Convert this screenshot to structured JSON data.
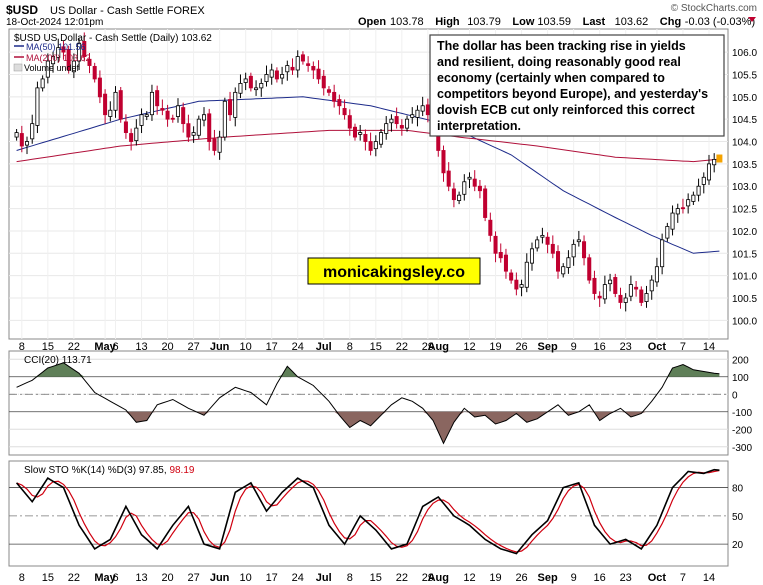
{
  "header": {
    "symbol": "$USD",
    "name": "US Dollar - Cash Settle FOREX",
    "datetime": "18-Oct-2024 12:01pm",
    "source": "© StockCharts.com",
    "ohlc": [
      {
        "label": "Open",
        "value": "103.78"
      },
      {
        "label": "High",
        "value": "103.79"
      },
      {
        "label": "Low",
        "value": "103.59"
      },
      {
        "label": "Last",
        "value": "103.62"
      },
      {
        "label": "Chg",
        "value": "-0.03 (-0.03%)"
      }
    ]
  },
  "legend": {
    "main": "$USD US Dollar - Cash Settle (Daily) 103.62",
    "ma50": "MA(50) 101.56",
    "ma200": "MA(200) 103.62",
    "volume": "Volume undef"
  },
  "annotation": "The dollar has been tracking rise in yields and resilient, doing reasonably good real economy (certainly when compared to competitors beyond Europe), and yesterday's dovish ECB cut only reinforced this correct interpretation.",
  "watermark": "monicakingsley.co",
  "colors": {
    "up": "#000000",
    "down": "#c00030",
    "ma50": "#1c2a8a",
    "ma200": "#b0103a",
    "cci_pos": "#5f7f58",
    "cci_neg": "#8a6660",
    "stoch_k": "#000000",
    "stoch_d": "#d00010",
    "watermark_bg": "#ffff00"
  },
  "x_axis": {
    "labels": [
      {
        "i": 1,
        "text": "8"
      },
      {
        "i": 6,
        "text": "15"
      },
      {
        "i": 11,
        "text": "22"
      },
      {
        "i": 17,
        "text": "May",
        "bold": true
      },
      {
        "i": 19,
        "text": "6"
      },
      {
        "i": 24,
        "text": "13"
      },
      {
        "i": 29,
        "text": "20"
      },
      {
        "i": 34,
        "text": "27"
      },
      {
        "i": 39,
        "text": "Jun",
        "bold": true
      },
      {
        "i": 44,
        "text": "10"
      },
      {
        "i": 49,
        "text": "17"
      },
      {
        "i": 54,
        "text": "24"
      },
      {
        "i": 59,
        "text": "Jul",
        "bold": true
      },
      {
        "i": 64,
        "text": "8"
      },
      {
        "i": 69,
        "text": "15"
      },
      {
        "i": 74,
        "text": "22"
      },
      {
        "i": 79,
        "text": "29"
      },
      {
        "i": 81,
        "text": "Aug",
        "bold": true
      },
      {
        "i": 87,
        "text": "12"
      },
      {
        "i": 92,
        "text": "19"
      },
      {
        "i": 97,
        "text": "26"
      },
      {
        "i": 102,
        "text": "Sep",
        "bold": true
      },
      {
        "i": 107,
        "text": "9"
      },
      {
        "i": 112,
        "text": "16"
      },
      {
        "i": 117,
        "text": "23"
      },
      {
        "i": 123,
        "text": "Oct",
        "bold": true
      },
      {
        "i": 128,
        "text": "7"
      },
      {
        "i": 133,
        "text": "14"
      }
    ]
  },
  "chart_data": [
    {
      "type": "candlestick",
      "title": "$USD US Dollar - Cash Settle (Daily) 103.62",
      "x_start": "2024-04-05",
      "x_end": "2024-10-18",
      "ylim": [
        99.65,
        106.45
      ],
      "yticks": [
        100.0,
        100.5,
        101.0,
        101.5,
        102.0,
        102.5,
        103.0,
        103.5,
        104.0,
        104.5,
        105.0,
        105.5,
        106.0
      ],
      "close": [
        104.2,
        103.9,
        104.0,
        104.4,
        105.2,
        105.4,
        105.8,
        105.9,
        106.1,
        106.0,
        105.6,
        105.8,
        106.2,
        105.9,
        105.7,
        105.4,
        105.0,
        104.6,
        104.7,
        105.1,
        104.5,
        104.2,
        104.0,
        104.3,
        104.6,
        104.6,
        105.1,
        104.8,
        104.7,
        104.5,
        104.5,
        104.8,
        104.4,
        104.1,
        104.2,
        104.5,
        104.6,
        104.0,
        103.8,
        104.1,
        104.9,
        104.6,
        105.1,
        105.3,
        105.4,
        105.2,
        105.2,
        105.3,
        105.5,
        105.6,
        105.4,
        105.5,
        105.7,
        105.6,
        105.9,
        105.8,
        105.7,
        105.6,
        105.4,
        105.2,
        105.1,
        104.9,
        104.8,
        104.6,
        104.3,
        104.1,
        104.2,
        104.0,
        103.8,
        104.0,
        104.2,
        104.4,
        104.5,
        104.4,
        104.3,
        104.5,
        104.6,
        104.7,
        104.8,
        104.6,
        104.2,
        103.8,
        103.3,
        103.0,
        102.7,
        102.8,
        103.1,
        103.2,
        103.0,
        102.9,
        102.3,
        101.9,
        101.5,
        101.4,
        101.1,
        100.9,
        100.7,
        100.8,
        101.3,
        101.6,
        101.8,
        101.9,
        101.7,
        101.5,
        101.1,
        101.2,
        101.4,
        101.7,
        101.8,
        101.4,
        100.9,
        100.6,
        100.5,
        100.8,
        100.9,
        100.6,
        100.4,
        100.5,
        100.8,
        100.7,
        100.4,
        100.6,
        100.9,
        101.2,
        101.8,
        102.1,
        102.4,
        102.5,
        102.5,
        102.7,
        102.8,
        103.0,
        103.2,
        103.5,
        103.6,
        103.62
      ],
      "series": [
        {
          "name": "MA(50)",
          "key": "ma50",
          "last": 101.56,
          "anchors": [
            [
              0,
              103.8
            ],
            [
              20,
              104.5
            ],
            [
              35,
              104.9
            ],
            [
              55,
              105.0
            ],
            [
              68,
              104.8
            ],
            [
              82,
              104.4
            ],
            [
              95,
              103.7
            ],
            [
              105,
              102.9
            ],
            [
              115,
              102.3
            ],
            [
              122,
              101.9
            ],
            [
              130,
              101.5
            ],
            [
              136,
              101.56
            ]
          ]
        },
        {
          "name": "MA(200)",
          "key": "ma200",
          "last": 103.62,
          "anchors": [
            [
              0,
              103.55
            ],
            [
              20,
              103.9
            ],
            [
              40,
              104.1
            ],
            [
              60,
              104.25
            ],
            [
              75,
              104.25
            ],
            [
              85,
              104.1
            ],
            [
              100,
              103.9
            ],
            [
              115,
              103.65
            ],
            [
              130,
              103.55
            ],
            [
              136,
              103.62
            ]
          ]
        }
      ]
    },
    {
      "type": "line",
      "title": "CCI(20) 113.71",
      "name": "CCI(20)",
      "last": 113.71,
      "ylim": [
        -330,
        230
      ],
      "yticks": [
        200,
        100,
        0,
        -100,
        -200,
        -300
      ],
      "values_anchors": [
        [
          0,
          40
        ],
        [
          3,
          80
        ],
        [
          6,
          150
        ],
        [
          9,
          180
        ],
        [
          12,
          120
        ],
        [
          15,
          10
        ],
        [
          18,
          -40
        ],
        [
          21,
          -90
        ],
        [
          23,
          -160
        ],
        [
          25,
          -150
        ],
        [
          27,
          -60
        ],
        [
          30,
          -30
        ],
        [
          33,
          -80
        ],
        [
          36,
          -120
        ],
        [
          39,
          -20
        ],
        [
          42,
          40
        ],
        [
          45,
          10
        ],
        [
          48,
          -60
        ],
        [
          50,
          60
        ],
        [
          52,
          160
        ],
        [
          54,
          100
        ],
        [
          57,
          50
        ],
        [
          60,
          -40
        ],
        [
          62,
          -120
        ],
        [
          64,
          -190
        ],
        [
          66,
          -150
        ],
        [
          68,
          -180
        ],
        [
          70,
          -120
        ],
        [
          72,
          -60
        ],
        [
          74,
          -20
        ],
        [
          76,
          -40
        ],
        [
          78,
          -80
        ],
        [
          80,
          -150
        ],
        [
          82,
          -280
        ],
        [
          84,
          -160
        ],
        [
          86,
          -80
        ],
        [
          88,
          -130
        ],
        [
          90,
          -120
        ],
        [
          92,
          -170
        ],
        [
          94,
          -150
        ],
        [
          96,
          -110
        ],
        [
          98,
          -160
        ],
        [
          100,
          -140
        ],
        [
          102,
          -100
        ],
        [
          104,
          -60
        ],
        [
          106,
          -120
        ],
        [
          108,
          -100
        ],
        [
          110,
          -60
        ],
        [
          112,
          -150
        ],
        [
          114,
          -110
        ],
        [
          116,
          -80
        ],
        [
          118,
          -130
        ],
        [
          120,
          -110
        ],
        [
          122,
          -40
        ],
        [
          124,
          40
        ],
        [
          126,
          150
        ],
        [
          128,
          170
        ],
        [
          130,
          140
        ],
        [
          132,
          130
        ],
        [
          134,
          120
        ],
        [
          136,
          114
        ]
      ]
    },
    {
      "type": "line",
      "title": "Slow STO %K(14) %D(3) 97.85, 98.19",
      "ylim": [
        0,
        105
      ],
      "yticks": [
        80,
        50,
        20
      ],
      "series": [
        {
          "name": "%K(14)",
          "key": "stoch_k",
          "last": 97.85,
          "values_anchors": [
            [
              0,
              85
            ],
            [
              3,
              65
            ],
            [
              6,
              90
            ],
            [
              9,
              80
            ],
            [
              12,
              40
            ],
            [
              15,
              15
            ],
            [
              18,
              25
            ],
            [
              21,
              60
            ],
            [
              24,
              30
            ],
            [
              27,
              15
            ],
            [
              30,
              40
            ],
            [
              33,
              60
            ],
            [
              36,
              20
            ],
            [
              39,
              15
            ],
            [
              42,
              75
            ],
            [
              45,
              85
            ],
            [
              48,
              55
            ],
            [
              51,
              75
            ],
            [
              54,
              90
            ],
            [
              57,
              80
            ],
            [
              60,
              40
            ],
            [
              63,
              20
            ],
            [
              66,
              50
            ],
            [
              69,
              35
            ],
            [
              72,
              15
            ],
            [
              75,
              20
            ],
            [
              78,
              60
            ],
            [
              81,
              70
            ],
            [
              84,
              50
            ],
            [
              87,
              40
            ],
            [
              90,
              25
            ],
            [
              93,
              15
            ],
            [
              96,
              10
            ],
            [
              99,
              30
            ],
            [
              102,
              45
            ],
            [
              105,
              80
            ],
            [
              108,
              85
            ],
            [
              111,
              40
            ],
            [
              114,
              20
            ],
            [
              117,
              25
            ],
            [
              120,
              15
            ],
            [
              123,
              40
            ],
            [
              126,
              80
            ],
            [
              129,
              97
            ],
            [
              132,
              95
            ],
            [
              134,
              99
            ],
            [
              136,
              97.85
            ]
          ]
        },
        {
          "name": "%D(3)",
          "key": "stoch_d",
          "last": 98.19,
          "lag": 1.5
        }
      ]
    }
  ]
}
